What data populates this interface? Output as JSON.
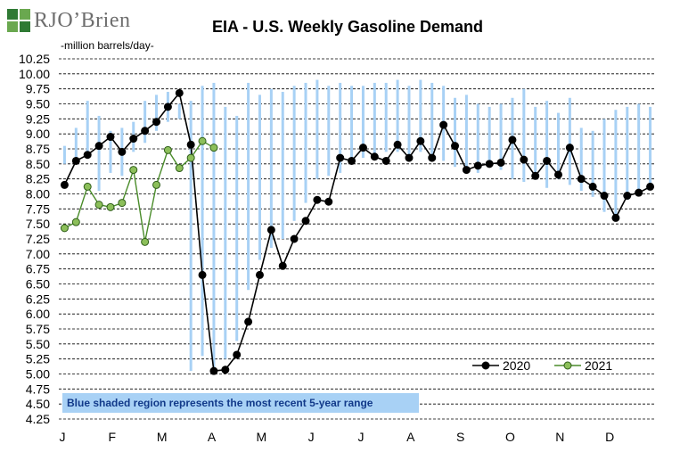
{
  "logo": {
    "text": "RJO’Brien"
  },
  "chart_data": {
    "type": "line",
    "title": "EIA - U.S. Weekly Gasoline Demand",
    "unit_label": "-million barrels/day-",
    "ylim": [
      4.25,
      10.25
    ],
    "y_ticks": [
      "10.25",
      "10.00",
      "9.75",
      "9.50",
      "9.25",
      "9.00",
      "8.75",
      "8.50",
      "8.25",
      "8.00",
      "7.75",
      "7.50",
      "7.25",
      "7.00",
      "6.75",
      "6.50",
      "6.25",
      "6.00",
      "5.75",
      "5.50",
      "5.25",
      "5.00",
      "4.75",
      "4.50",
      "4.25"
    ],
    "x_ticks": [
      "J",
      "F",
      "M",
      "A",
      "M",
      "J",
      "J",
      "A",
      "S",
      "O",
      "N",
      "D"
    ],
    "grid": "horizontal dashed",
    "legend_position": "bottom-right",
    "colors": {
      "2020": "#000000",
      "2021": "#4a8c2a",
      "range": "#a8d1f5"
    },
    "weeks": 52,
    "range_band": {
      "name": "5-year range",
      "low": [
        8.5,
        8.55,
        8.6,
        8.05,
        8.35,
        8.3,
        8.7,
        8.85,
        9.05,
        9.2,
        9.25,
        5.05,
        5.3,
        5.05,
        5.25,
        5.55,
        6.4,
        6.9,
        7.1,
        7.25,
        7.55,
        7.85,
        8.25,
        8.3,
        8.35,
        8.55,
        8.6,
        8.6,
        8.7,
        8.7,
        8.65,
        8.7,
        8.6,
        8.55,
        8.45,
        8.4,
        8.35,
        8.5,
        8.4,
        8.25,
        8.2,
        8.3,
        8.1,
        8.25,
        8.15,
        8.05,
        7.95,
        7.7,
        7.6,
        7.9,
        8.0,
        8.1
      ],
      "high": [
        8.8,
        9.1,
        9.55,
        9.3,
        9.05,
        9.1,
        9.2,
        9.55,
        9.65,
        9.7,
        9.5,
        9.55,
        9.8,
        9.85,
        9.45,
        9.3,
        9.85,
        9.65,
        9.75,
        9.7,
        9.8,
        9.85,
        9.9,
        9.8,
        9.85,
        9.8,
        9.8,
        9.85,
        9.85,
        9.9,
        9.8,
        9.9,
        9.85,
        9.8,
        9.6,
        9.65,
        9.5,
        9.45,
        9.5,
        9.6,
        9.75,
        9.45,
        9.55,
        9.35,
        9.6,
        9.1,
        9.05,
        9.25,
        9.4,
        9.45,
        9.5,
        9.45
      ]
    },
    "series": [
      {
        "name": "2020",
        "values": [
          8.15,
          8.55,
          8.65,
          8.8,
          8.95,
          8.7,
          8.92,
          9.05,
          9.2,
          9.45,
          9.68,
          8.82,
          6.65,
          5.05,
          5.07,
          5.32,
          5.87,
          6.65,
          7.4,
          6.8,
          7.25,
          7.55,
          7.9,
          7.87,
          8.6,
          8.55,
          8.77,
          8.62,
          8.55,
          8.82,
          8.6,
          8.88,
          8.6,
          9.15,
          8.8,
          8.4,
          8.47,
          8.5,
          8.52,
          8.9,
          8.57,
          8.3,
          8.55,
          8.32,
          8.77,
          8.25,
          8.12,
          7.97,
          7.6,
          7.97,
          8.02,
          8.12
        ]
      },
      {
        "name": "2021",
        "values": [
          7.43,
          7.53,
          8.12,
          7.82,
          7.78,
          7.85,
          8.4,
          7.2,
          8.15,
          8.73,
          8.43,
          8.6,
          8.88,
          8.77
        ]
      }
    ],
    "note": "Blue shaded region represents the most recent 5-year range"
  }
}
